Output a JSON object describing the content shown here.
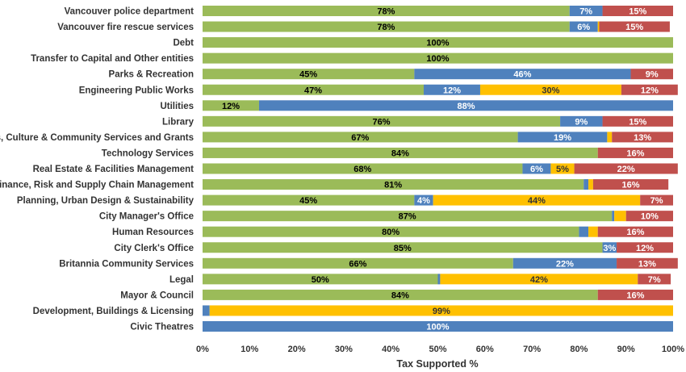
{
  "chart_data": {
    "type": "bar",
    "orientation": "horizontal",
    "stacked": true,
    "xlabel": "Tax Supported %",
    "xlim": [
      0,
      100
    ],
    "x_ticks": [
      "0%",
      "10%",
      "20%",
      "30%",
      "40%",
      "50%",
      "60%",
      "70%",
      "80%",
      "90%",
      "100%"
    ],
    "grid": false,
    "legend": "none",
    "colors": [
      "#9BBB59",
      "#4F81BD",
      "#FFC000",
      "#C0504D"
    ],
    "label_colors": [
      "#000000",
      "#ffffff",
      "#333333",
      "#ffffff"
    ],
    "categories": [
      "Vancouver police department",
      "Vancouver fire rescue services",
      "Debt",
      "Transfer to Capital and Other entities",
      "Parks & Recreation",
      "Engineering Public Works",
      "Utilities",
      "Library",
      "Arts, Culture & Community Services and Grants",
      "Technology Services",
      "Real Estate & Facilities Management",
      "Finance, Risk and Supply Chain Management",
      "Planning, Urban Design & Sustainability",
      "City Manager's Office",
      "Human Resources",
      "City Clerk's Office",
      "Britannia Community Services",
      "Legal",
      "Mayor & Council",
      "Development, Buildings & Licensing",
      "Civic Theatres"
    ],
    "series": [
      {
        "values": [
          78,
          78,
          100,
          100,
          45,
          47,
          12,
          76,
          67,
          84,
          68,
          81,
          45,
          87,
          80,
          85,
          66,
          50,
          84,
          0,
          0
        ]
      },
      {
        "values": [
          7,
          6,
          0,
          0,
          46,
          12,
          88,
          9,
          19,
          0,
          6,
          1,
          4,
          0.5,
          2,
          3,
          22,
          0.5,
          0,
          1.5,
          100
        ]
      },
      {
        "values": [
          0,
          0.3,
          0,
          0,
          0,
          30,
          0,
          0,
          1,
          0,
          5,
          1,
          44,
          2.5,
          2,
          0,
          0,
          42,
          0,
          98.5,
          0
        ]
      },
      {
        "values": [
          15,
          15,
          0,
          0,
          9,
          12,
          0,
          15,
          13,
          16,
          22,
          16,
          7,
          10,
          16,
          12,
          13,
          7,
          16,
          0,
          0
        ]
      }
    ],
    "data_labels": [
      [
        "78%",
        "78%",
        "100%",
        "100%",
        "45%",
        "47%",
        "12%",
        "76%",
        "67%",
        "84%",
        "68%",
        "81%",
        "45%",
        "87%",
        "80%",
        "85%",
        "66%",
        "50%",
        "84%",
        "",
        ""
      ],
      [
        "7%",
        "6%",
        "",
        "",
        "46%",
        "12%",
        "88%",
        "9%",
        "19%",
        "",
        "6%",
        "",
        "4%",
        "",
        "",
        "3%",
        "22%",
        "",
        "",
        "",
        "100%"
      ],
      [
        "",
        "",
        "",
        "",
        "",
        "30%",
        "",
        "",
        "",
        "",
        "5%",
        "",
        "44%",
        "",
        "",
        "",
        "",
        "42%",
        "",
        "99%",
        ""
      ],
      [
        "15%",
        "15%",
        "",
        "",
        "9%",
        "12%",
        "",
        "15%",
        "13%",
        "16%",
        "22%",
        "16%",
        "7%",
        "10%",
        "16%",
        "12%",
        "13%",
        "7%",
        "16%",
        "",
        ""
      ]
    ]
  }
}
